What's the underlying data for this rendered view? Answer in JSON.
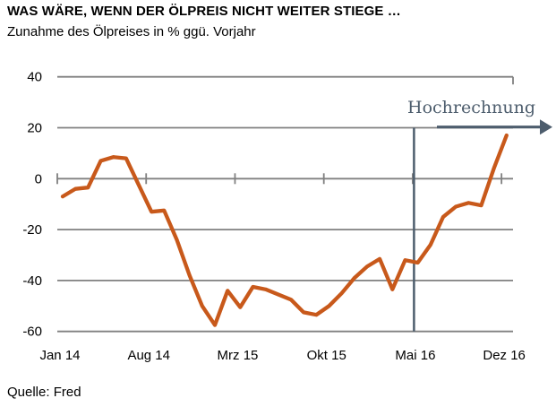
{
  "header": {
    "title": "WAS WÄRE, WENN DER ÖLPREIS NICHT WEITER STIEGE …",
    "subtitle": "Zunahme des Ölpreises in % ggü. Vorjahr"
  },
  "footer": {
    "source": "Quelle: Fred"
  },
  "chart_data": {
    "type": "line",
    "title": "WAS WÄRE, WENN DER ÖLPREIS NICHT WEITER STIEGE …",
    "subtitle": "Zunahme des Ölpreises in % ggü. Vorjahr",
    "source": "Quelle: Fred",
    "ylabel": "Zunahme des Ölpreises in % ggü. Vorjahr",
    "ylim": [
      -60,
      40
    ],
    "y_ticks": [
      40,
      20,
      0,
      -20,
      -40,
      -60
    ],
    "x_tick_labels": [
      "Jan 14",
      "Aug 14",
      "Mrz 15",
      "Okt 15",
      "Mai 16",
      "Dez 16"
    ],
    "x_axis": {
      "start": "Jan 14",
      "end": "Dez 16",
      "interval": "monthly",
      "ticks_every_months": 7
    },
    "grid": true,
    "legend": false,
    "annotation": {
      "label": "Hochrechnung",
      "divider_at": "Mai 16",
      "divider_month_index": 27.7,
      "arrow_direction": "right",
      "arrow_level": 20
    },
    "series": [
      {
        "name": "Zunahme des Ölpreises in % ggü. Vorjahr",
        "values": [
          -7,
          -4,
          -3.5,
          7,
          8.5,
          8,
          -2.5,
          -13,
          -12.5,
          -24,
          -38,
          -50,
          -57.5,
          -44,
          -50.5,
          -42.5,
          -43.5,
          -45.5,
          -47.5,
          -52.5,
          -53.5,
          -50,
          -45,
          -39,
          -34.5,
          -31.5,
          -43.5,
          -32,
          -33,
          -26,
          -15,
          -11,
          -9.5,
          -10.5,
          4,
          17
        ]
      }
    ],
    "colors": {
      "line": "#C8591B",
      "grid": "#808080",
      "projection": "#4D5D6D",
      "text": "#000000"
    }
  }
}
